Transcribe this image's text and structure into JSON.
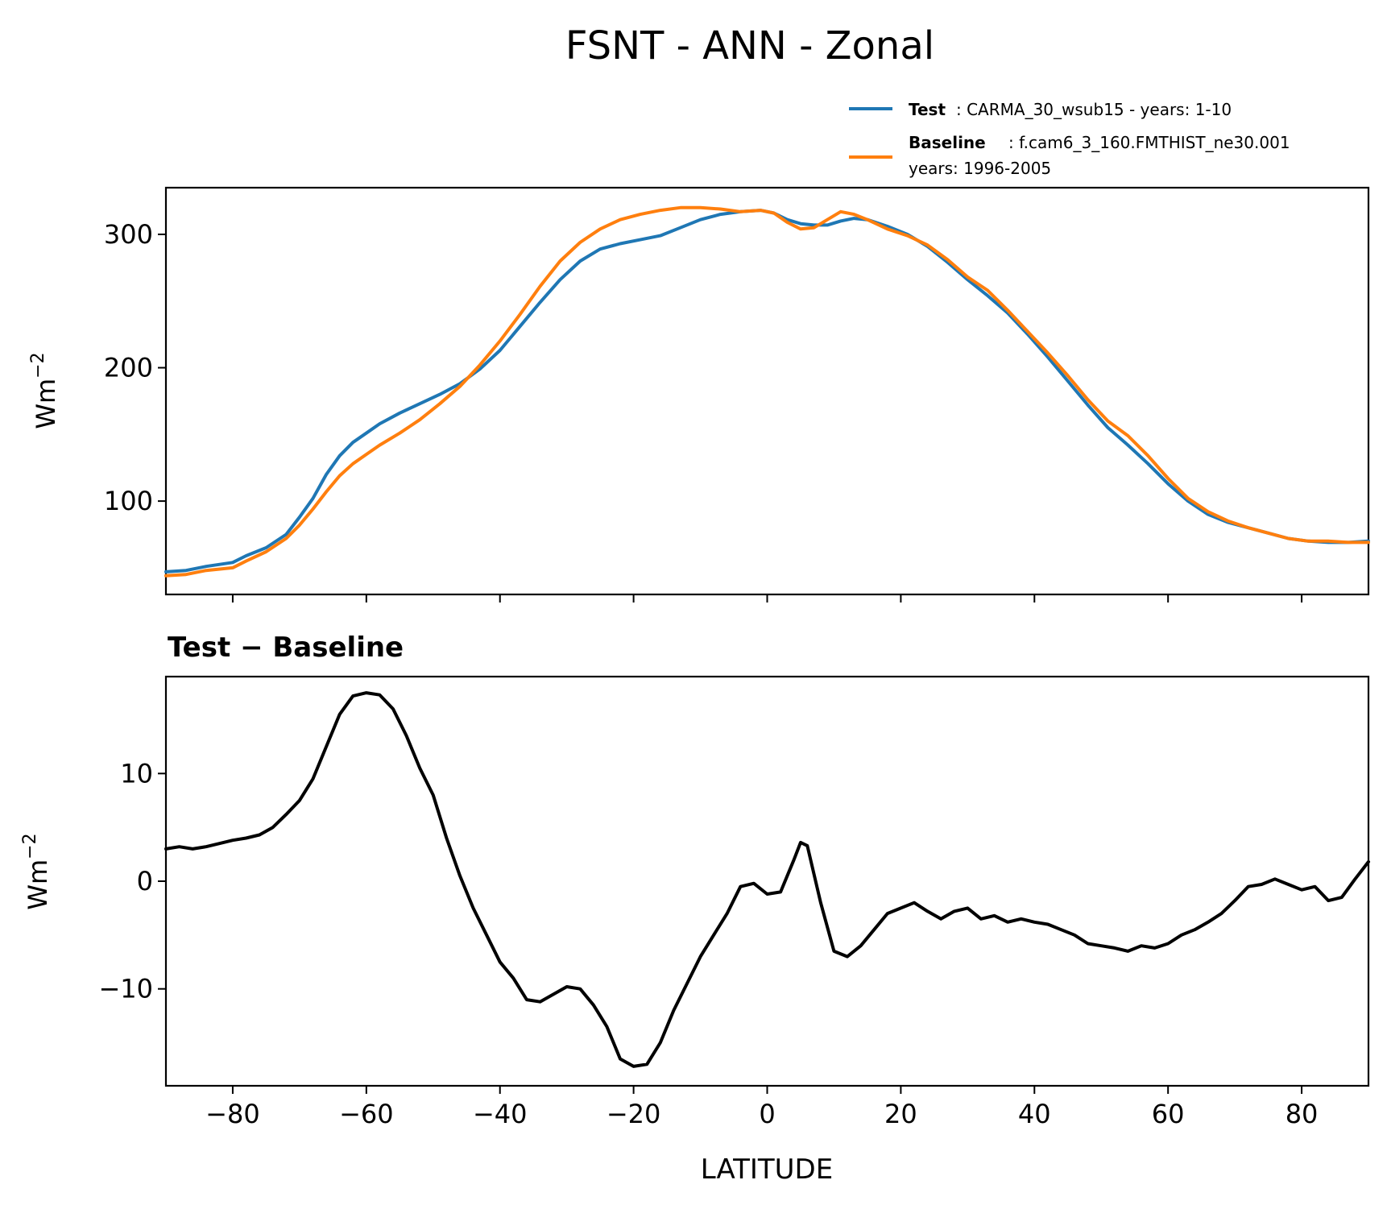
{
  "figure": {
    "title": "FSNT - ANN - Zonal"
  },
  "legend": {
    "test_label": "Test",
    "test_text": ": CARMA_30_wsub15 - years: 1-10",
    "baseline_label": "Baseline",
    "baseline_text": ": f.cam6_3_160.FMTHIST_ne30.001",
    "baseline_years": "years: 1996-2005"
  },
  "colors": {
    "test": "#1f77b4",
    "baseline": "#ff7f0e",
    "diff": "#000000"
  },
  "chart_data": [
    {
      "type": "line",
      "title": "",
      "xlabel": "",
      "ylabel": "Wm⁻²",
      "ylabel_base": "Wm",
      "ylabel_exp": "−2",
      "xlim": [
        -90,
        90
      ],
      "ylim": [
        30,
        335
      ],
      "yticks": [
        100,
        200,
        300
      ],
      "ytick_labels": [
        "100",
        "200",
        "300"
      ],
      "xticks": [
        -80,
        -60,
        -40,
        -20,
        0,
        20,
        40,
        60,
        80
      ],
      "series": [
        {
          "name": "Test",
          "x": [
            -90,
            -87,
            -84,
            -80,
            -78,
            -75,
            -72,
            -70,
            -68,
            -66,
            -64,
            -62,
            -60,
            -58,
            -55,
            -52,
            -49,
            -46,
            -43,
            -40,
            -37,
            -34,
            -31,
            -28,
            -25,
            -22,
            -19,
            -16,
            -13,
            -10,
            -7,
            -4,
            -1,
            1,
            3,
            5,
            7,
            9,
            11,
            13,
            15,
            18,
            21,
            24,
            27,
            30,
            33,
            36,
            39,
            42,
            45,
            48,
            51,
            54,
            57,
            60,
            63,
            66,
            69,
            72,
            75,
            78,
            81,
            84,
            87,
            90
          ],
          "values": [
            47,
            48,
            51,
            54,
            59,
            65,
            75,
            88,
            102,
            120,
            134,
            144,
            151,
            158,
            166,
            173,
            180,
            188,
            199,
            213,
            231,
            249,
            266,
            280,
            289,
            293,
            296,
            299,
            305,
            311,
            315,
            317,
            318,
            316,
            311,
            308,
            307,
            307,
            310,
            312,
            311,
            306,
            300,
            291,
            279,
            266,
            254,
            241,
            225,
            208,
            190,
            172,
            155,
            142,
            128,
            113,
            100,
            90,
            84,
            80,
            76,
            72,
            70,
            69,
            69,
            70
          ]
        },
        {
          "name": "Baseline",
          "x": [
            -90,
            -87,
            -84,
            -80,
            -78,
            -75,
            -72,
            -70,
            -68,
            -66,
            -64,
            -62,
            -60,
            -58,
            -55,
            -52,
            -49,
            -46,
            -43,
            -40,
            -37,
            -34,
            -31,
            -28,
            -25,
            -22,
            -19,
            -16,
            -13,
            -10,
            -7,
            -4,
            -1,
            1,
            3,
            5,
            7,
            9,
            11,
            13,
            15,
            18,
            21,
            24,
            27,
            30,
            33,
            36,
            39,
            42,
            45,
            48,
            51,
            54,
            57,
            60,
            63,
            66,
            69,
            72,
            75,
            78,
            81,
            84,
            87,
            90
          ],
          "values": [
            44,
            45,
            48,
            50,
            55,
            62,
            72,
            82,
            94,
            107,
            119,
            128,
            135,
            142,
            151,
            161,
            173,
            186,
            202,
            220,
            240,
            261,
            280,
            294,
            304,
            311,
            315,
            318,
            320,
            320,
            319,
            317,
            318,
            316,
            309,
            304,
            305,
            311,
            317,
            315,
            311,
            304,
            299,
            292,
            281,
            268,
            258,
            243,
            227,
            211,
            194,
            176,
            160,
            149,
            134,
            117,
            102,
            92,
            85,
            80,
            76,
            72,
            70,
            70,
            69,
            69
          ]
        }
      ]
    },
    {
      "type": "line",
      "title": "Test − Baseline",
      "xlabel": "LATITUDE",
      "ylabel": "Wm⁻²",
      "ylabel_base": "Wm",
      "ylabel_exp": "−2",
      "xlim": [
        -90,
        90
      ],
      "ylim": [
        -19,
        19
      ],
      "yticks": [
        -10,
        0,
        10
      ],
      "ytick_labels": [
        "−10",
        "0",
        "10"
      ],
      "xticks": [
        -80,
        -60,
        -40,
        -20,
        0,
        20,
        40,
        60,
        80
      ],
      "xtick_labels": [
        "−80",
        "−60",
        "−40",
        "−20",
        "0",
        "20",
        "40",
        "60",
        "80"
      ],
      "series": [
        {
          "name": "Test − Baseline",
          "x": [
            -90,
            -88,
            -86,
            -84,
            -82,
            -80,
            -78,
            -76,
            -74,
            -72,
            -70,
            -68,
            -66,
            -64,
            -62,
            -60,
            -58,
            -56,
            -54,
            -52,
            -50,
            -48,
            -46,
            -44,
            -42,
            -40,
            -38,
            -36,
            -34,
            -32,
            -30,
            -28,
            -26,
            -24,
            -22,
            -20,
            -18,
            -16,
            -14,
            -12,
            -10,
            -8,
            -6,
            -4,
            -2,
            0,
            2,
            4,
            5,
            6,
            8,
            10,
            12,
            14,
            16,
            18,
            20,
            22,
            24,
            26,
            28,
            30,
            32,
            34,
            36,
            38,
            40,
            42,
            44,
            46,
            48,
            50,
            52,
            54,
            56,
            58,
            60,
            62,
            64,
            66,
            68,
            70,
            72,
            74,
            76,
            78,
            80,
            82,
            84,
            86,
            88,
            90
          ],
          "values": [
            3.0,
            3.2,
            3.0,
            3.2,
            3.5,
            3.8,
            4.0,
            4.3,
            5.0,
            6.2,
            7.5,
            9.5,
            12.5,
            15.5,
            17.2,
            17.5,
            17.3,
            16.0,
            13.5,
            10.5,
            8.0,
            4.0,
            0.5,
            -2.5,
            -5.0,
            -7.5,
            -9.0,
            -11.0,
            -11.2,
            -10.5,
            -9.8,
            -10.0,
            -11.5,
            -13.5,
            -16.5,
            -17.2,
            -17.0,
            -15.0,
            -12.0,
            -9.5,
            -7.0,
            -5.0,
            -3.0,
            -0.5,
            -0.2,
            -1.2,
            -1.0,
            2.0,
            3.6,
            3.3,
            -2.0,
            -6.5,
            -7.0,
            -6.0,
            -4.5,
            -3.0,
            -2.5,
            -2.0,
            -2.8,
            -3.5,
            -2.8,
            -2.5,
            -3.5,
            -3.2,
            -3.8,
            -3.5,
            -3.8,
            -4.0,
            -4.5,
            -5.0,
            -5.8,
            -6.0,
            -6.2,
            -6.5,
            -6.0,
            -6.2,
            -5.8,
            -5.0,
            -4.5,
            -3.8,
            -3.0,
            -1.8,
            -0.5,
            -0.3,
            0.2,
            -0.3,
            -0.8,
            -0.5,
            -1.8,
            -1.5,
            0.2,
            1.8
          ]
        }
      ]
    }
  ]
}
